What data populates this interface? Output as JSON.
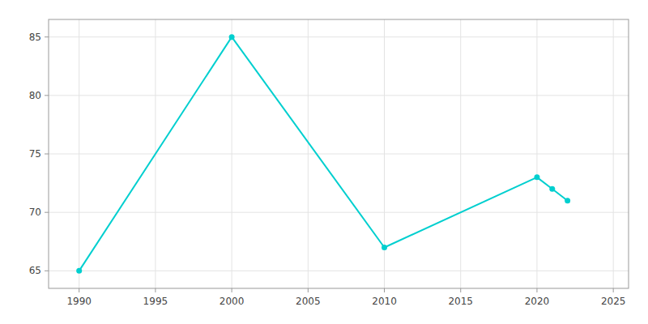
{
  "chart_data": {
    "type": "line",
    "x": [
      1990,
      2000,
      2010,
      2020,
      2021,
      2022
    ],
    "values": [
      65,
      85,
      67,
      73,
      72,
      71
    ],
    "color": "#00CFCF",
    "marker": "circle",
    "grid": true,
    "xlim": [
      1988,
      2026
    ],
    "ylim": [
      63.5,
      86.5
    ],
    "xticks": [
      1990,
      1995,
      2000,
      2005,
      2010,
      2015,
      2020,
      2025
    ],
    "yticks": [
      65,
      70,
      75,
      80,
      85
    ]
  }
}
